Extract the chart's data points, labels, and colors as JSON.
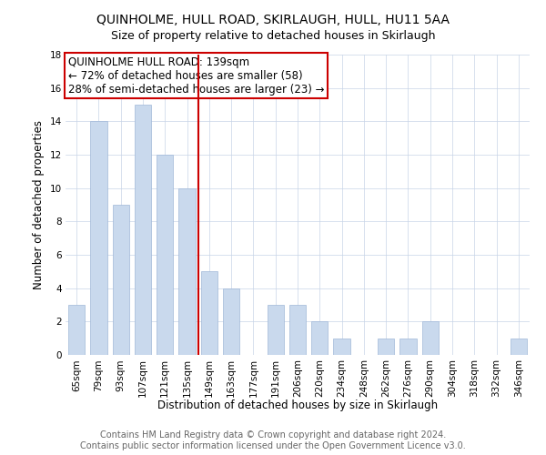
{
  "title": "QUINHOLME, HULL ROAD, SKIRLAUGH, HULL, HU11 5AA",
  "subtitle": "Size of property relative to detached houses in Skirlaugh",
  "xlabel": "Distribution of detached houses by size in Skirlaugh",
  "ylabel": "Number of detached properties",
  "categories": [
    "65sqm",
    "79sqm",
    "93sqm",
    "107sqm",
    "121sqm",
    "135sqm",
    "149sqm",
    "163sqm",
    "177sqm",
    "191sqm",
    "206sqm",
    "220sqm",
    "234sqm",
    "248sqm",
    "262sqm",
    "276sqm",
    "290sqm",
    "304sqm",
    "318sqm",
    "332sqm",
    "346sqm"
  ],
  "values": [
    3,
    14,
    9,
    15,
    12,
    10,
    5,
    4,
    0,
    3,
    3,
    2,
    1,
    0,
    1,
    1,
    2,
    0,
    0,
    0,
    1
  ],
  "bar_color": "#c9d9ed",
  "bar_edge_color": "#a0b8d8",
  "vline_x_index": 5,
  "vline_color": "#cc0000",
  "annotation_lines": [
    "QUINHOLME HULL ROAD: 139sqm",
    "← 72% of detached houses are smaller (58)",
    "28% of semi-detached houses are larger (23) →"
  ],
  "annotation_box_color": "#cc0000",
  "ylim": [
    0,
    18
  ],
  "yticks": [
    0,
    2,
    4,
    6,
    8,
    10,
    12,
    14,
    16,
    18
  ],
  "footer_line1": "Contains HM Land Registry data © Crown copyright and database right 2024.",
  "footer_line2": "Contains public sector information licensed under the Open Government Licence v3.0.",
  "title_fontsize": 10,
  "subtitle_fontsize": 9,
  "axis_label_fontsize": 8.5,
  "tick_fontsize": 7.5,
  "annotation_fontsize": 8.5,
  "footer_fontsize": 7,
  "bar_width": 0.75
}
